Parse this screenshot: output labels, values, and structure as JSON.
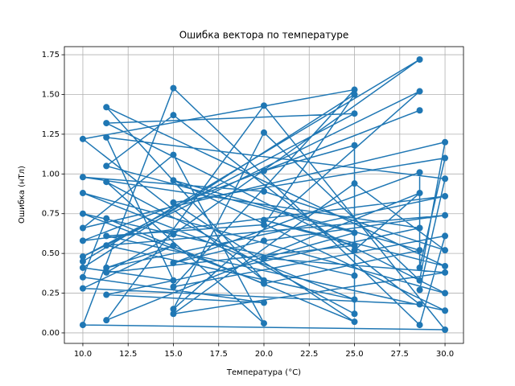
{
  "chart_data": {
    "type": "line",
    "title": "Ошибка вектора по температуре",
    "xlabel": "Температура (°C)",
    "ylabel": "Ошибка (нТл)",
    "xlim": [
      8.98,
      31.02
    ],
    "ylim": [
      -0.066,
      1.801
    ],
    "xticks": [
      {
        "value": 10,
        "label": "10.0"
      },
      {
        "value": 12.5,
        "label": "12.5"
      },
      {
        "value": 15,
        "label": "15.0"
      },
      {
        "value": 17.5,
        "label": "17.5"
      },
      {
        "value": 20,
        "label": "20.0"
      },
      {
        "value": 22.5,
        "label": "22.5"
      },
      {
        "value": 25,
        "label": "25.0"
      },
      {
        "value": 27.5,
        "label": "27.5"
      },
      {
        "value": 30,
        "label": "30.0"
      }
    ],
    "yticks": [
      {
        "value": 0,
        "label": "0.00"
      },
      {
        "value": 0.25,
        "label": "0.25"
      },
      {
        "value": 0.5,
        "label": "0.50"
      },
      {
        "value": 0.75,
        "label": "0.75"
      },
      {
        "value": 1,
        "label": "1.00"
      },
      {
        "value": 1.25,
        "label": "1.25"
      },
      {
        "value": 1.5,
        "label": "1.50"
      },
      {
        "value": 1.75,
        "label": "1.75"
      }
    ],
    "grid": true,
    "color": "#1f77b4",
    "x": [
      10,
      28.6,
      15,
      11.3,
      25,
      20,
      30,
      11.3,
      20,
      10,
      25,
      15,
      30,
      28.6,
      15,
      10,
      30,
      20,
      11.3,
      28.6,
      25,
      25,
      11.3,
      20,
      15,
      10,
      30,
      28.6,
      20,
      15,
      28.6,
      10,
      25,
      11.3,
      30,
      10,
      25,
      11.3,
      30,
      20,
      15,
      28.6,
      28.6,
      30,
      15,
      25,
      11.3,
      10,
      20,
      11.3,
      28.6,
      10,
      20,
      30,
      25,
      15,
      30,
      20,
      25,
      11.3,
      15,
      28.6,
      10,
      15,
      11.3,
      30,
      10,
      28.6,
      20,
      25,
      25,
      10,
      20,
      28.6,
      15,
      30,
      11.3,
      20,
      25,
      10,
      15,
      11.3,
      30,
      28.6
    ],
    "values": [
      0.45,
      1.72,
      0.62,
      0.38,
      0.55,
      0.71,
      0.42,
      1.42,
      0.33,
      1.22,
      1.53,
      0.29,
      0.61,
      0.05,
      1.54,
      0.05,
      0.02,
      1.43,
      0.08,
      0.88,
      0.52,
      0.12,
      0.95,
      0.06,
      1.12,
      0.66,
      1.2,
      0.33,
      1.26,
      0.15,
      1.52,
      0.48,
      1.38,
      1.32,
      0.25,
      0.88,
      0.21,
      0.55,
      0.74,
      0.58,
      0.44,
      1.01,
      0.41,
      1.1,
      0.82,
      0.07,
      0.72,
      0.35,
      0.19,
      0.24,
      0.66,
      0.98,
      0.89,
      0.52,
      0.94,
      0.12,
      0.38,
      0.47,
      0.63,
      1.05,
      1.37,
      0.18,
      0.28,
      0.55,
      0.41,
      0.86,
      0.58,
      1.4,
      1.02,
      1.18,
      0.36,
      0.75,
      0.31,
      0.52,
      0.96,
      0.14,
      0.61,
      0.68,
      1.5,
      0.41,
      0.33,
      1.23,
      0.97,
      0.27
    ]
  }
}
